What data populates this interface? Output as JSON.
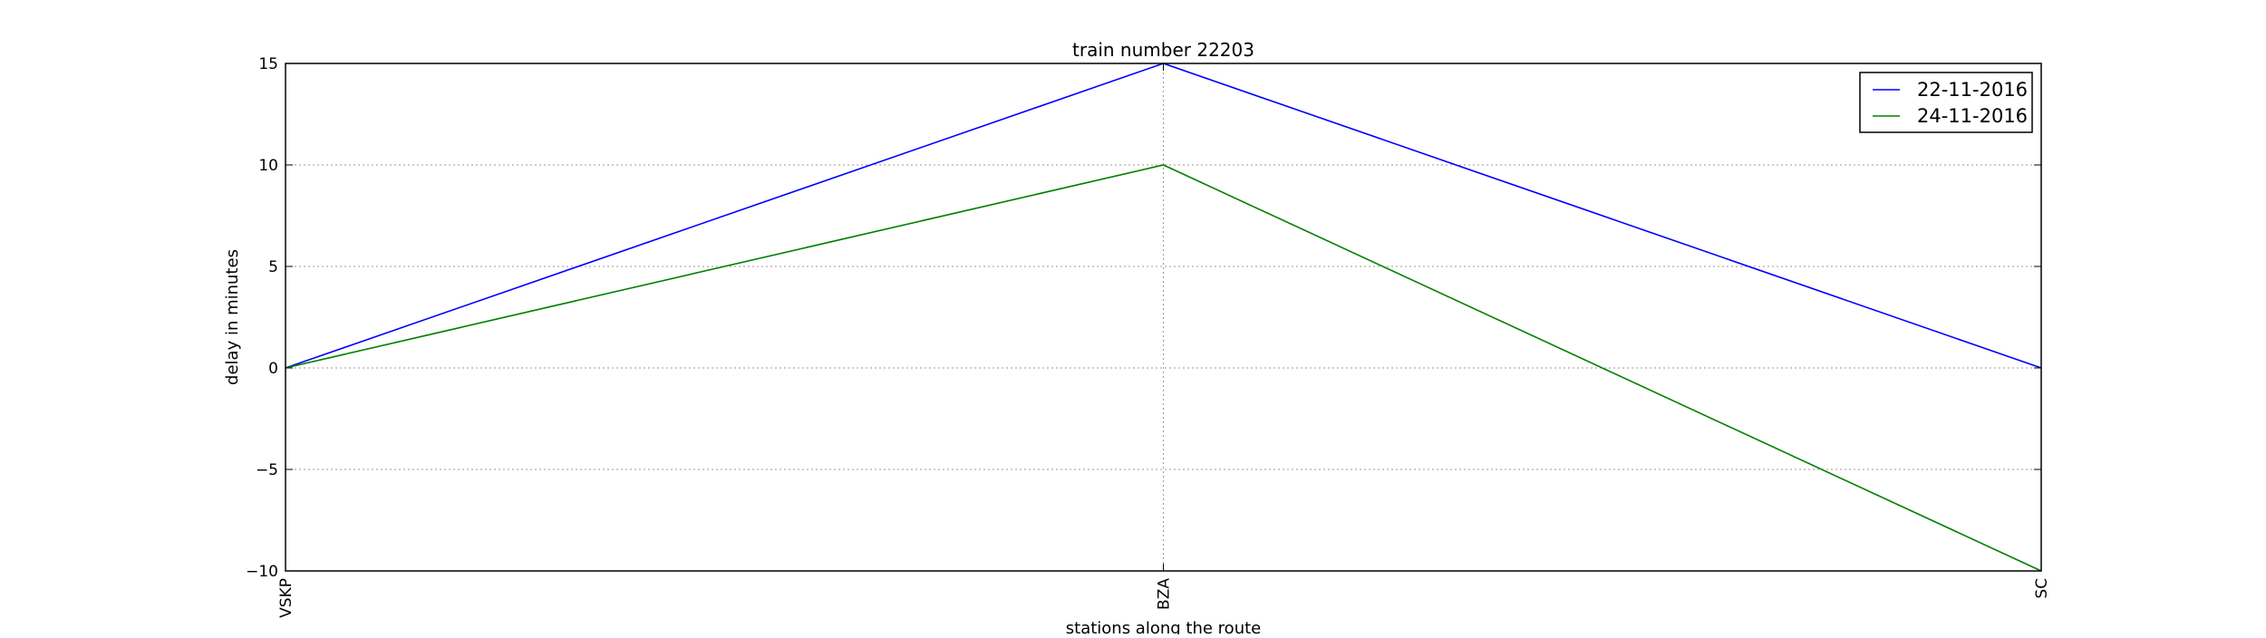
{
  "chart_data": {
    "type": "line",
    "title": "train number 22203",
    "xlabel": "stations along the route",
    "ylabel": "delay in minutes",
    "categories": [
      "VSKP",
      "BZA",
      "SC"
    ],
    "ylim": [
      -10,
      15
    ],
    "yticks": [
      "15",
      "10",
      "5",
      "0",
      "−5",
      "−10"
    ],
    "ytick_values": [
      15,
      10,
      5,
      0,
      -5,
      -10
    ],
    "grid": true,
    "legend_position": "top-right",
    "series": [
      {
        "name": "22-11-2016",
        "color": "#0000ff",
        "values": [
          0,
          15,
          0
        ]
      },
      {
        "name": "24-11-2016",
        "color": "#008000",
        "values": [
          0,
          10,
          -10
        ]
      }
    ]
  }
}
